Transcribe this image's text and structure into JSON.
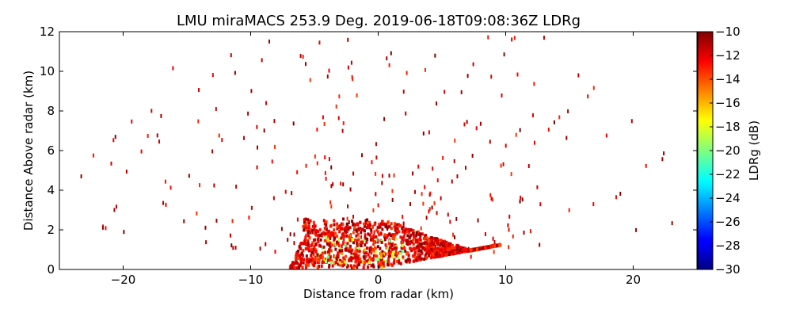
{
  "chart_data": {
    "type": "heatmap",
    "title": "LMU miraMACS 253.9 Deg. 2019-06-18T09:08:36Z  LDRg",
    "xlabel": "Distance from radar (km)",
    "ylabel": "Distance Above radar  (km)",
    "xlim": [
      -25,
      25
    ],
    "ylim": [
      0,
      12
    ],
    "x_ticks": [
      -20,
      -10,
      0,
      10,
      20
    ],
    "x_tick_labels": [
      "−20",
      "−10",
      "0",
      "10",
      "20"
    ],
    "y_ticks": [
      0,
      2,
      4,
      6,
      8,
      10,
      12
    ],
    "y_tick_labels": [
      "0",
      "2",
      "4",
      "6",
      "8",
      "10",
      "12"
    ],
    "colorbar": {
      "label": "LDRg (dB)",
      "range": [
        -30,
        -10
      ],
      "ticks": [
        -10,
        -12,
        -14,
        -16,
        -18,
        -20,
        -22,
        -24,
        -26,
        -28,
        -30
      ],
      "tick_labels": [
        "−10",
        "−12",
        "−14",
        "−16",
        "−18",
        "−20",
        "−22",
        "−24",
        "−26",
        "−28",
        "−30"
      ],
      "colormap": "jet"
    },
    "description_of_data": "RHI scan of linear depolarization ratio; dense echo region between about -6 and 9 km horizontally below about 2.5 km height, with values mostly -10 to -14 dB and some -16 to -20 dB patches near 0 to -4 km; sparse scattered gates above.",
    "grid": false
  }
}
